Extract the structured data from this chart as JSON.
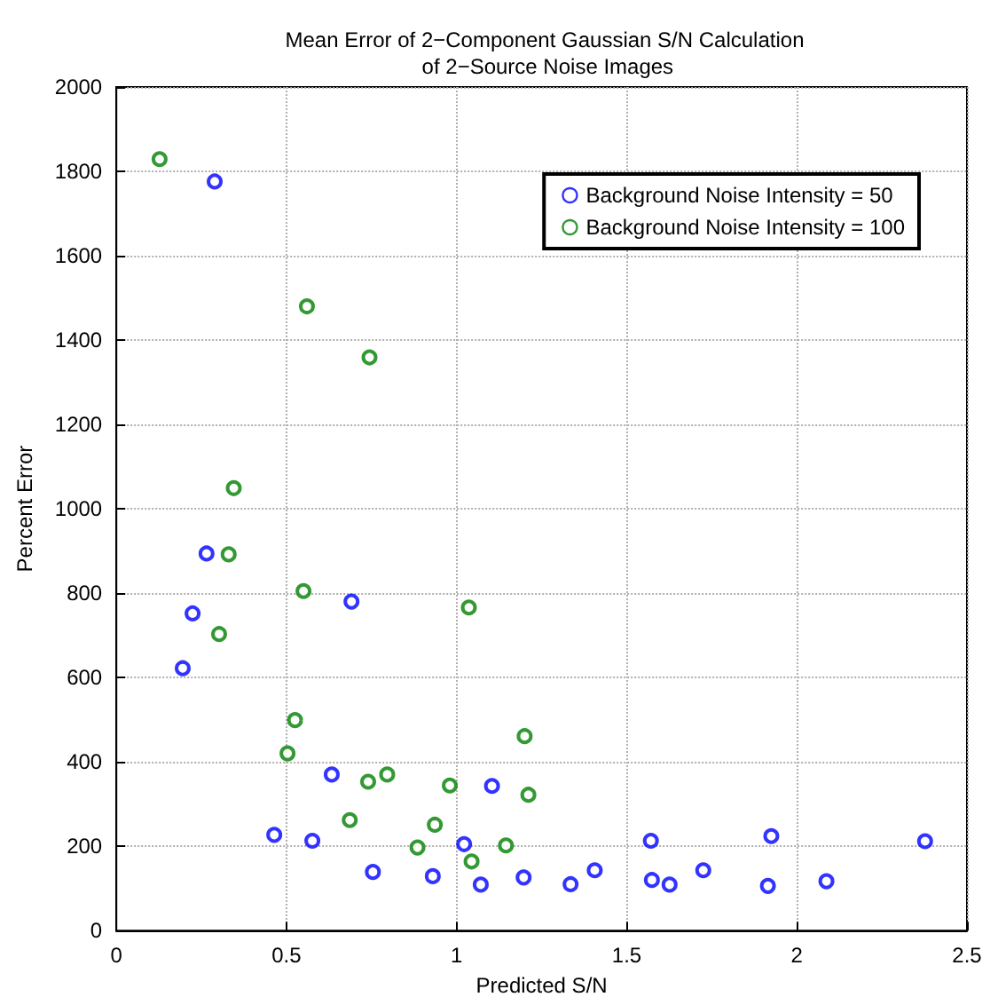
{
  "chart_data": {
    "type": "scatter",
    "title": "Mean Error of 2−Component Gaussian S/N Calculation of 2−Source Noise Images",
    "xlabel": "Predicted S/N",
    "ylabel": "Percent Error",
    "xlim": [
      0,
      2.5
    ],
    "xticks": [
      0,
      0.5,
      1,
      1.5,
      2,
      2.5
    ],
    "ylim": [
      0,
      2000
    ],
    "yticks": [
      0,
      200,
      400,
      600,
      800,
      1000,
      1200,
      1400,
      1600,
      1800,
      2000
    ],
    "grid": true,
    "legend": "top right",
    "marker": "circle",
    "series": [
      {
        "name": "Background Noise Intensity = 50",
        "color": "#0000ff",
        "x": [
          0.289,
          0.265,
          0.691,
          0.224,
          0.195,
          0.633,
          1.104,
          0.464,
          0.576,
          1.022,
          0.754,
          0.93,
          1.197,
          1.071,
          1.335,
          1.406,
          1.571,
          1.574,
          1.626,
          1.725,
          1.915,
          1.925,
          2.087,
          2.377
        ],
        "values": [
          1776,
          894,
          780,
          752,
          622,
          370,
          343,
          227,
          213,
          205,
          139,
          129,
          126,
          109,
          110,
          143,
          213,
          120,
          109,
          143,
          106,
          224,
          117,
          212
        ]
      },
      {
        "name": "Background Noise Intensity = 100",
        "color": "#008000",
        "x": [
          0.127,
          0.56,
          0.744,
          0.345,
          0.33,
          0.55,
          1.036,
          0.302,
          0.525,
          1.2,
          0.503,
          0.796,
          0.74,
          0.98,
          1.211,
          0.686,
          0.936,
          1.145,
          0.885,
          1.044
        ],
        "values": [
          1829,
          1480,
          1359,
          1049,
          892,
          805,
          766,
          703,
          499,
          461,
          420,
          370,
          353,
          344,
          322,
          262,
          251,
          202,
          197,
          164
        ]
      }
    ]
  }
}
